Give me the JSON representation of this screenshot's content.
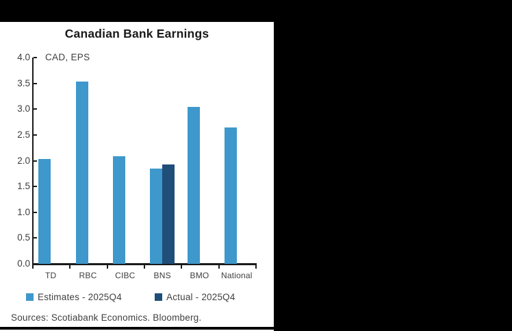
{
  "page": {
    "background_color": "#000000",
    "panel_color": "#ffffff"
  },
  "chart_data": {
    "type": "bar",
    "title": "Canadian Bank Earnings",
    "subtitle": "CAD, EPS",
    "categories": [
      "TD",
      "RBC",
      "CIBC",
      "BNS",
      "BMO",
      "National"
    ],
    "series": [
      {
        "name": "Estimates - 2025Q4",
        "color": "#3E98CB",
        "values": [
          2.03,
          3.54,
          2.09,
          1.85,
          3.04,
          2.64
        ]
      },
      {
        "name": "Actual - 2025Q4",
        "color": "#1F4E79",
        "values": [
          null,
          null,
          null,
          1.93,
          null,
          null
        ]
      }
    ],
    "xlabel": "",
    "ylabel": "",
    "ylim": [
      0,
      4.0
    ],
    "ytick_labels": [
      "0.0",
      "0.5",
      "1.0",
      "1.5",
      "2.0",
      "2.5",
      "3.0",
      "3.5",
      "4.0"
    ],
    "grid": false,
    "legend_position": "bottom",
    "source": "Sources: Scotiabank Economics. Bloomberg."
  }
}
